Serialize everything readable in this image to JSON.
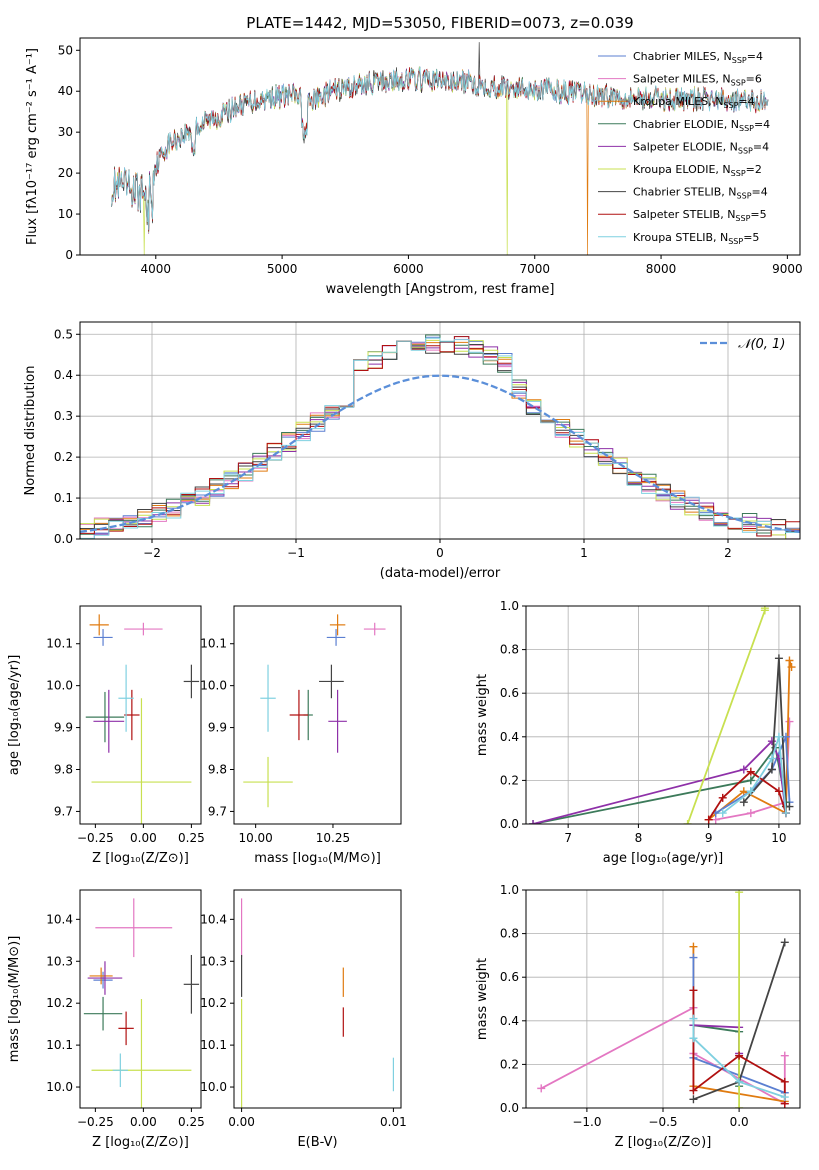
{
  "colors": {
    "chabrier_miles": "#5b7fd1",
    "salpeter_miles": "#e377c2",
    "kroupa_miles": "#e07b10",
    "chabrier_elodie": "#3c7a5a",
    "salpeter_elodie": "#8e30a8",
    "kroupa_elodie": "#c8e050",
    "chabrier_stelib": "#444444",
    "salpeter_stelib": "#b01010",
    "kroupa_stelib": "#7fd0e0",
    "normal": "#5b8fd9"
  },
  "chart_data": [
    {
      "id": "spectrum",
      "type": "line",
      "title": "PLATE=1442, MJD=53050, FIBERID=0073, z=0.039",
      "xlabel": "wavelength [Angstrom, rest frame]",
      "ylabel": "Flux [fλ10⁻¹⁷ erg cm⁻² s⁻¹ A⁻¹]",
      "xlim": [
        3400,
        9100
      ],
      "ylim": [
        0,
        53
      ],
      "xticks": [
        4000,
        5000,
        6000,
        7000,
        8000,
        9000
      ],
      "yticks": [
        0,
        10,
        20,
        30,
        40,
        50
      ],
      "legend_position": "top-right",
      "legend": [
        {
          "name": "Chabrier MILES, N",
          "sub": "SSP",
          "suffix": "=4",
          "color": "chabrier_miles"
        },
        {
          "name": "Salpeter MILES, N",
          "sub": "SSP",
          "suffix": "=6",
          "color": "salpeter_miles"
        },
        {
          "name": "Kroupa MILES, N",
          "sub": "SSP",
          "suffix": "=4",
          "color": "kroupa_miles"
        },
        {
          "name": "Chabrier ELODIE, N",
          "sub": "SSP",
          "suffix": "=4",
          "color": "chabrier_elodie"
        },
        {
          "name": "Salpeter ELODIE, N",
          "sub": "SSP",
          "suffix": "=4",
          "color": "salpeter_elodie"
        },
        {
          "name": "Kroupa ELODIE, N",
          "sub": "SSP",
          "suffix": "=2",
          "color": "kroupa_elodie"
        },
        {
          "name": "Chabrier STELIB, N",
          "sub": "SSP",
          "suffix": "=4",
          "color": "chabrier_stelib"
        },
        {
          "name": "Salpeter STELIB, N",
          "sub": "SSP",
          "suffix": "=5",
          "color": "salpeter_stelib"
        },
        {
          "name": "Kroupa STELIB, N",
          "sub": "SSP",
          "suffix": "=5",
          "color": "kroupa_stelib"
        }
      ],
      "continuum": [
        [
          3650,
          17
        ],
        [
          3800,
          16
        ],
        [
          3900,
          15
        ],
        [
          3960,
          20
        ],
        [
          4100,
          27
        ],
        [
          4300,
          31
        ],
        [
          4500,
          34
        ],
        [
          4700,
          37
        ],
        [
          4900,
          38.5
        ],
        [
          5100,
          39
        ],
        [
          5200,
          37
        ],
        [
          5400,
          40
        ],
        [
          5700,
          42
        ],
        [
          6000,
          43
        ],
        [
          6300,
          42.5
        ],
        [
          6500,
          42
        ],
        [
          6700,
          41
        ],
        [
          7000,
          40.5
        ],
        [
          7200,
          40
        ],
        [
          7500,
          39
        ],
        [
          7800,
          38.5
        ],
        [
          8100,
          38
        ],
        [
          8400,
          38
        ],
        [
          8850,
          37.5
        ]
      ],
      "cutoffs": [
        {
          "series": "kroupa_elodie",
          "x": 3910
        },
        {
          "series": "kroupa_elodie",
          "x": 6780
        },
        {
          "series": "kroupa_miles",
          "x": 7420
        }
      ],
      "spike": {
        "x": 6560,
        "y": 52
      }
    },
    {
      "id": "residuals",
      "type": "histogram",
      "xlabel": "(data-model)/error",
      "ylabel": "Normed distribution",
      "xlim": [
        -2.5,
        2.5
      ],
      "ylim": [
        0,
        0.53
      ],
      "xticks": [
        -2,
        -1,
        0,
        1,
        2
      ],
      "yticks": [
        0.0,
        0.1,
        0.2,
        0.3,
        0.4,
        0.5
      ],
      "grid": true,
      "legend_position": "top-right",
      "normal_label": "𝒩(0, 1)",
      "bin_width": 0.1
    },
    {
      "id": "age_vs_Z",
      "type": "errorbar",
      "xlabel": "Z [log₁₀(Z/Z⊙)]",
      "ylabel": "age  [log₁₀(age/yr)]",
      "xlim": [
        -0.33,
        0.3
      ],
      "ylim": [
        9.67,
        10.19
      ],
      "xticks": [
        -0.25,
        0.0,
        0.25
      ],
      "xticklabels": [
        "−0.25",
        "0.00",
        "0.25"
      ],
      "yticks": [
        9.7,
        9.8,
        9.9,
        10.0,
        10.1
      ],
      "points": [
        {
          "c": "chabrier_miles",
          "x": -0.21,
          "y": 10.115,
          "xe": 0.05,
          "ye": 0.02
        },
        {
          "c": "salpeter_miles",
          "x": 0.0,
          "y": 10.135,
          "xe": 0.1,
          "ye": 0.015
        },
        {
          "c": "kroupa_miles",
          "x": -0.23,
          "y": 10.145,
          "xe": 0.05,
          "ye": 0.025
        },
        {
          "c": "chabrier_elodie",
          "x": -0.2,
          "y": 9.925,
          "xe": 0.1,
          "ye": 0.06
        },
        {
          "c": "salpeter_elodie",
          "x": -0.18,
          "y": 9.915,
          "xe": 0.08,
          "ye": 0.075
        },
        {
          "c": "kroupa_elodie",
          "x": -0.01,
          "y": 9.77,
          "xe": 0.26,
          "ye": 0.2
        },
        {
          "c": "chabrier_stelib",
          "x": 0.25,
          "y": 10.01,
          "xe": 0.04,
          "ye": 0.04
        },
        {
          "c": "salpeter_stelib",
          "x": -0.06,
          "y": 9.93,
          "xe": 0.04,
          "ye": 0.06
        },
        {
          "c": "kroupa_stelib",
          "x": -0.09,
          "y": 9.97,
          "xe": 0.04,
          "ye": 0.08
        }
      ]
    },
    {
      "id": "age_vs_mass",
      "type": "errorbar",
      "xlabel": "mass [log₁₀(M/M⊙)]",
      "ylabel": "",
      "xlim": [
        9.93,
        10.47
      ],
      "ylim": [
        9.67,
        10.19
      ],
      "xticks": [
        10.0,
        10.25
      ],
      "xticklabels": [
        "10.00",
        "10.25"
      ],
      "yticks": [
        9.7,
        9.8,
        9.9,
        10.0,
        10.1
      ],
      "points": [
        {
          "c": "chabrier_miles",
          "x": 10.26,
          "y": 10.115,
          "xe": 0.03,
          "ye": 0.02
        },
        {
          "c": "salpeter_miles",
          "x": 10.385,
          "y": 10.135,
          "xe": 0.035,
          "ye": 0.015
        },
        {
          "c": "kroupa_miles",
          "x": 10.265,
          "y": 10.145,
          "xe": 0.025,
          "ye": 0.025
        },
        {
          "c": "chabrier_elodie",
          "x": 10.17,
          "y": 9.93,
          "xe": 0.015,
          "ye": 0.06
        },
        {
          "c": "salpeter_elodie",
          "x": 10.265,
          "y": 9.915,
          "xe": 0.03,
          "ye": 0.075
        },
        {
          "c": "kroupa_elodie",
          "x": 10.04,
          "y": 9.77,
          "xe": 0.08,
          "ye": 0.06
        },
        {
          "c": "chabrier_stelib",
          "x": 10.245,
          "y": 10.01,
          "xe": 0.04,
          "ye": 0.04
        },
        {
          "c": "salpeter_stelib",
          "x": 10.14,
          "y": 9.93,
          "xe": 0.03,
          "ye": 0.06
        },
        {
          "c": "kroupa_stelib",
          "x": 10.04,
          "y": 9.97,
          "xe": 0.025,
          "ye": 0.08
        }
      ]
    },
    {
      "id": "weight_vs_age",
      "type": "line",
      "xlabel": "age  [log₁₀(age/yr)]",
      "ylabel": "mass weight",
      "xlim": [
        6.4,
        10.3
      ],
      "ylim": [
        0,
        1.0
      ],
      "xticks": [
        7,
        8,
        9,
        10
      ],
      "yticks": [
        0.0,
        0.2,
        0.4,
        0.6,
        0.8,
        1.0
      ],
      "grid": true,
      "series": [
        {
          "c": "salpeter_miles",
          "x": [
            9.1,
            9.6,
            10.1,
            10.15
          ],
          "y": [
            0.02,
            0.05,
            0.1,
            0.47
          ]
        },
        {
          "c": "kroupa_miles",
          "x": [
            9.0,
            9.5,
            10.1,
            10.15,
            10.18
          ],
          "y": [
            0.02,
            0.15,
            0.05,
            0.75,
            0.72
          ]
        },
        {
          "c": "chabrier_miles",
          "x": [
            9.1,
            9.6,
            9.9,
            10.1,
            10.15
          ],
          "y": [
            0.05,
            0.15,
            0.25,
            0.4,
            0.1
          ]
        },
        {
          "c": "chabrier_elodie",
          "x": [
            6.5,
            9.6,
            9.95,
            10.1
          ],
          "y": [
            0.0,
            0.2,
            0.35,
            0.1
          ]
        },
        {
          "c": "salpeter_elodie",
          "x": [
            6.5,
            9.5,
            9.9,
            10.0,
            10.1
          ],
          "y": [
            0.0,
            0.25,
            0.38,
            0.3,
            0.05
          ]
        },
        {
          "c": "kroupa_elodie",
          "x": [
            8.7,
            9.8,
            9.8
          ],
          "y": [
            0.0,
            0.98,
            0.99
          ]
        },
        {
          "c": "chabrier_stelib",
          "x": [
            9.5,
            9.9,
            10.0,
            10.1,
            10.15
          ],
          "y": [
            0.1,
            0.25,
            0.76,
            0.08,
            0.08
          ]
        },
        {
          "c": "salpeter_stelib",
          "x": [
            9.0,
            9.2,
            9.6,
            10.0,
            10.1
          ],
          "y": [
            0.02,
            0.12,
            0.24,
            0.15,
            0.05
          ]
        },
        {
          "c": "kroupa_stelib",
          "x": [
            9.2,
            9.6,
            9.9,
            10.0,
            10.1
          ],
          "y": [
            0.05,
            0.15,
            0.3,
            0.4,
            0.05
          ]
        }
      ]
    },
    {
      "id": "mass_vs_Z",
      "type": "errorbar",
      "xlabel": "Z [log₁₀(Z/Z⊙)]",
      "ylabel": "mass [log₁₀(M/M⊙)]",
      "xlim": [
        -0.33,
        0.3
      ],
      "ylim": [
        9.95,
        10.47
      ],
      "xticks": [
        -0.25,
        0.0,
        0.25
      ],
      "xticklabels": [
        "−0.25",
        "0.00",
        "0.25"
      ],
      "yticks": [
        10.0,
        10.1,
        10.2,
        10.3,
        10.4
      ],
      "points": [
        {
          "c": "chabrier_miles",
          "x": -0.21,
          "y": 10.255,
          "xe": 0.05,
          "ye": 0.02
        },
        {
          "c": "salpeter_miles",
          "x": -0.05,
          "y": 10.38,
          "xe": 0.2,
          "ye": 0.07
        },
        {
          "c": "kroupa_miles",
          "x": -0.22,
          "y": 10.265,
          "xe": 0.06,
          "ye": 0.02
        },
        {
          "c": "chabrier_elodie",
          "x": -0.21,
          "y": 10.175,
          "xe": 0.1,
          "ye": 0.04
        },
        {
          "c": "salpeter_elodie",
          "x": -0.2,
          "y": 10.26,
          "xe": 0.09,
          "ye": 0.04
        },
        {
          "c": "kroupa_elodie",
          "x": -0.01,
          "y": 10.04,
          "xe": 0.26,
          "ye": 0.17
        },
        {
          "c": "chabrier_stelib",
          "x": 0.25,
          "y": 10.245,
          "xe": 0.04,
          "ye": 0.07
        },
        {
          "c": "salpeter_stelib",
          "x": -0.09,
          "y": 10.14,
          "xe": 0.04,
          "ye": 0.04
        },
        {
          "c": "kroupa_stelib",
          "x": -0.12,
          "y": 10.04,
          "xe": 0.04,
          "ye": 0.04
        }
      ]
    },
    {
      "id": "mass_vs_ebv",
      "type": "errorbar",
      "xlabel": "E(B-V)",
      "ylabel": "",
      "xlim": [
        -0.0005,
        0.0105
      ],
      "ylim": [
        9.95,
        10.47
      ],
      "xticks": [
        0.0,
        0.01
      ],
      "xticklabels": [
        "0.00",
        "0.01"
      ],
      "yticks": [
        10.0,
        10.1,
        10.2,
        10.3,
        10.4
      ],
      "points": [
        {
          "c": "salpeter_miles",
          "x": 0.0,
          "y": 10.38,
          "xe": 0.0,
          "ye": 0.07
        },
        {
          "c": "chabrier_stelib",
          "x": 0.0,
          "y": 10.265,
          "xe": 0.0,
          "ye": 0.05
        },
        {
          "c": "kroupa_elodie",
          "x": 0.0,
          "y": 10.04,
          "xe": 0.0,
          "ye": 0.17
        },
        {
          "c": "kroupa_miles",
          "x": 0.0067,
          "y": 10.25,
          "xe": 0.0,
          "ye": 0.035
        },
        {
          "c": "salpeter_stelib",
          "x": 0.0067,
          "y": 10.155,
          "xe": 0.0,
          "ye": 0.035
        },
        {
          "c": "kroupa_stelib",
          "x": 0.01,
          "y": 10.03,
          "xe": 0.0,
          "ye": 0.04
        }
      ]
    },
    {
      "id": "weight_vs_Z",
      "type": "line",
      "xlabel": "Z [log₁₀(Z/Z⊙)]",
      "ylabel": "mass weight",
      "xlim": [
        -1.4,
        0.4
      ],
      "ylim": [
        0,
        1.0
      ],
      "xticks": [
        -1.0,
        -0.5,
        0.0
      ],
      "xticklabels": [
        "−1.0",
        "−0.5",
        "0.0"
      ],
      "yticks": [
        0.0,
        0.2,
        0.4,
        0.6,
        0.8,
        1.0
      ],
      "grid": true,
      "series": [
        {
          "c": "salpeter_miles",
          "x": [
            -1.3,
            -0.3,
            -0.3,
            0.3,
            0.3
          ],
          "y": [
            0.09,
            0.46,
            0.25,
            0.02,
            0.24
          ]
        },
        {
          "c": "kroupa_miles",
          "x": [
            -0.3,
            -0.3,
            0.3
          ],
          "y": [
            0.74,
            0.1,
            0.03
          ]
        },
        {
          "c": "chabrier_miles",
          "x": [
            -0.3,
            -0.3,
            0.3
          ],
          "y": [
            0.69,
            0.23,
            0.07
          ]
        },
        {
          "c": "chabrier_elodie",
          "x": [
            -0.3,
            0.0,
            0.0
          ],
          "y": [
            0.38,
            0.35,
            0.1
          ]
        },
        {
          "c": "salpeter_elodie",
          "x": [
            -0.3,
            0.0,
            0.0
          ],
          "y": [
            0.38,
            0.37,
            0.25
          ]
        },
        {
          "c": "kroupa_elodie",
          "x": [
            0.0,
            0.0
          ],
          "y": [
            0.0,
            0.99
          ]
        },
        {
          "c": "chabrier_stelib",
          "x": [
            -0.3,
            0.0,
            0.3
          ],
          "y": [
            0.04,
            0.12,
            0.76
          ]
        },
        {
          "c": "salpeter_stelib",
          "x": [
            -0.3,
            -0.3,
            0.0,
            0.3,
            0.3
          ],
          "y": [
            0.54,
            0.08,
            0.24,
            0.12,
            0.02
          ]
        },
        {
          "c": "kroupa_stelib",
          "x": [
            -0.3,
            -0.3,
            0.0,
            0.3
          ],
          "y": [
            0.41,
            0.32,
            0.12,
            0.05
          ]
        }
      ]
    }
  ]
}
